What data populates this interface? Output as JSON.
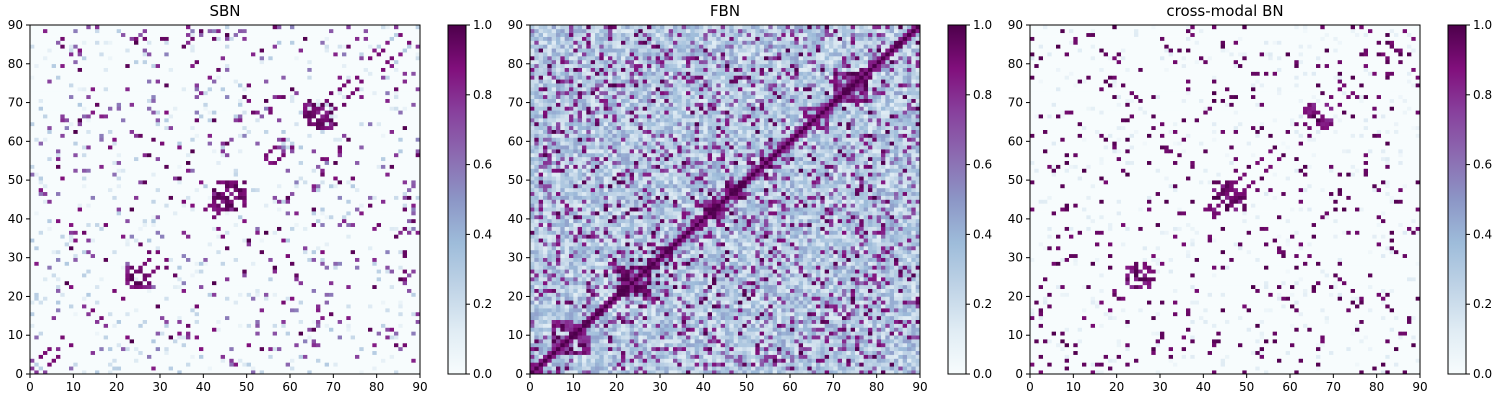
{
  "colormap": [
    "#f7fcfd",
    "#e0ecf4",
    "#bfd3e6",
    "#9ebcda",
    "#8c96c6",
    "#8c6bb1",
    "#88419d",
    "#810f7c",
    "#4d004b"
  ],
  "chart_data": [
    {
      "type": "heatmap",
      "title": "SBN",
      "xlim": [
        0,
        90
      ],
      "ylim": [
        0,
        90
      ],
      "xticks": [
        "0",
        "10",
        "20",
        "30",
        "40",
        "50",
        "60",
        "70",
        "80",
        "90"
      ],
      "yticks": [
        "0",
        "10",
        "20",
        "30",
        "40",
        "50",
        "60",
        "70",
        "80",
        "90"
      ],
      "colorbar": {
        "range": [
          0.0,
          1.0
        ],
        "ticks": [
          "0.0",
          "0.2",
          "0.4",
          "0.6",
          "0.8",
          "1.0"
        ]
      },
      "matrix_size": 90,
      "density": "sparse",
      "description_values": "symmetric, mostly near 0, scattered strong connections (~1.0) along and near diagonal"
    },
    {
      "type": "heatmap",
      "title": "FBN",
      "xlim": [
        0,
        90
      ],
      "ylim": [
        0,
        90
      ],
      "xticks": [
        "0",
        "10",
        "20",
        "30",
        "40",
        "50",
        "60",
        "70",
        "80",
        "90"
      ],
      "yticks": [
        "0",
        "10",
        "20",
        "30",
        "40",
        "50",
        "60",
        "70",
        "80",
        "90"
      ],
      "colorbar": {
        "range": [
          0.0,
          1.0
        ],
        "ticks": [
          "0.0",
          "0.2",
          "0.4",
          "0.6",
          "0.8",
          "1.0"
        ]
      },
      "matrix_size": 90,
      "density": "dense",
      "description_values": "symmetric, dense moderate values (0.2–0.5) with many strong entries near 1.0"
    },
    {
      "type": "heatmap",
      "title": "cross-modal BN",
      "xlim": [
        0,
        90
      ],
      "ylim": [
        0,
        90
      ],
      "xticks": [
        "0",
        "10",
        "20",
        "30",
        "40",
        "50",
        "60",
        "70",
        "80",
        "90"
      ],
      "yticks": [
        "0",
        "10",
        "20",
        "30",
        "40",
        "50",
        "60",
        "70",
        "80",
        "90"
      ],
      "colorbar": {
        "range": [
          0.0,
          1.0
        ],
        "ticks": [
          "0.0",
          "0.2",
          "0.4",
          "0.6",
          "0.8",
          "1.0"
        ]
      },
      "matrix_size": 90,
      "density": "sparse-binary",
      "description_values": "symmetric, near 0 background with isolated entries at ~1.0"
    }
  ]
}
